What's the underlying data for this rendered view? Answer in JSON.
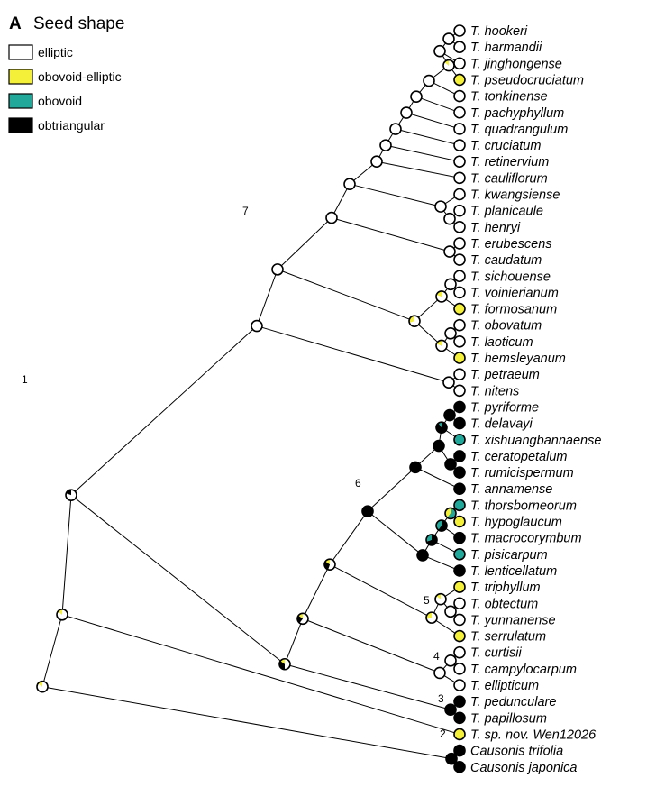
{
  "panel": {
    "letter": "A",
    "title": "Seed shape"
  },
  "colors": {
    "elliptic": "#ffffff",
    "obovoid-elliptic": "#f4f03a",
    "obovoid": "#22a89a",
    "obtriangular": "#000000"
  },
  "legend": [
    {
      "state": "elliptic",
      "label": "elliptic"
    },
    {
      "state": "obovoid-elliptic",
      "label": "obovoid-elliptic"
    },
    {
      "state": "obovoid",
      "label": "obovoid"
    },
    {
      "state": "obtriangular",
      "label": "obtriangular"
    }
  ],
  "taxa": [
    {
      "name": "T. hookeri",
      "state": "elliptic"
    },
    {
      "name": "T. harmandii",
      "state": "elliptic"
    },
    {
      "name": "T. jinghongense",
      "state": "elliptic"
    },
    {
      "name": "T. pseudocruciatum",
      "state": "obovoid-elliptic"
    },
    {
      "name": "T. tonkinense",
      "state": "elliptic"
    },
    {
      "name": "T. pachyphyllum",
      "state": "elliptic"
    },
    {
      "name": "T. quadrangulum",
      "state": "elliptic"
    },
    {
      "name": "T. cruciatum",
      "state": "elliptic"
    },
    {
      "name": "T. retinervium",
      "state": "elliptic"
    },
    {
      "name": "T. cauliflorum",
      "state": "elliptic"
    },
    {
      "name": "T. kwangsiense",
      "state": "elliptic"
    },
    {
      "name": "T. planicaule",
      "state": "elliptic"
    },
    {
      "name": "T. henryi",
      "state": "elliptic"
    },
    {
      "name": "T. erubescens",
      "state": "elliptic"
    },
    {
      "name": "T. caudatum",
      "state": "elliptic"
    },
    {
      "name": "T. sichouense",
      "state": "elliptic"
    },
    {
      "name": "T. voinierianum",
      "state": "elliptic"
    },
    {
      "name": "T. formosanum",
      "state": "obovoid-elliptic"
    },
    {
      "name": "T. obovatum",
      "state": "elliptic"
    },
    {
      "name": "T. laoticum",
      "state": "elliptic"
    },
    {
      "name": "T. hemsleyanum",
      "state": "obovoid-elliptic"
    },
    {
      "name": "T. petraeum",
      "state": "elliptic"
    },
    {
      "name": "T. nitens",
      "state": "elliptic"
    },
    {
      "name": "T. pyriforme",
      "state": "obtriangular"
    },
    {
      "name": "T. delavayi",
      "state": "obtriangular"
    },
    {
      "name": "T. xishuangbannaense",
      "state": "obovoid"
    },
    {
      "name": "T. ceratopetalum",
      "state": "obtriangular"
    },
    {
      "name": "T. rumicispermum",
      "state": "obtriangular"
    },
    {
      "name": "T. annamense",
      "state": "obtriangular"
    },
    {
      "name": "T. thorsborneorum",
      "state": "obovoid"
    },
    {
      "name": "T. hypoglaucum",
      "state": "obovoid-elliptic"
    },
    {
      "name": "T. macrocorymbum",
      "state": "obtriangular"
    },
    {
      "name": "T. pisicarpum",
      "state": "obovoid"
    },
    {
      "name": "T. lenticellatum",
      "state": "obtriangular"
    },
    {
      "name": "T. triphyllum",
      "state": "obovoid-elliptic"
    },
    {
      "name": "T. obtectum",
      "state": "elliptic"
    },
    {
      "name": "T. yunnanense",
      "state": "elliptic"
    },
    {
      "name": "T. serrulatum",
      "state": "obovoid-elliptic"
    },
    {
      "name": "T. curtisii",
      "state": "elliptic"
    },
    {
      "name": "T. campylocarpum",
      "state": "elliptic"
    },
    {
      "name": "T. ellipticum",
      "state": "elliptic"
    },
    {
      "name": "T. pedunculare",
      "state": "obtriangular"
    },
    {
      "name": "T. papillosum",
      "state": "obtriangular"
    },
    {
      "name": "T. sp. nov. Wen12026",
      "state": "obovoid-elliptic"
    },
    {
      "name": "Causonis trifolia",
      "state": "obtriangular"
    },
    {
      "name": "Causonis japonica",
      "state": "obtriangular"
    }
  ],
  "node_labels": [
    "1",
    "2",
    "3",
    "4",
    "5",
    "6",
    "7"
  ]
}
